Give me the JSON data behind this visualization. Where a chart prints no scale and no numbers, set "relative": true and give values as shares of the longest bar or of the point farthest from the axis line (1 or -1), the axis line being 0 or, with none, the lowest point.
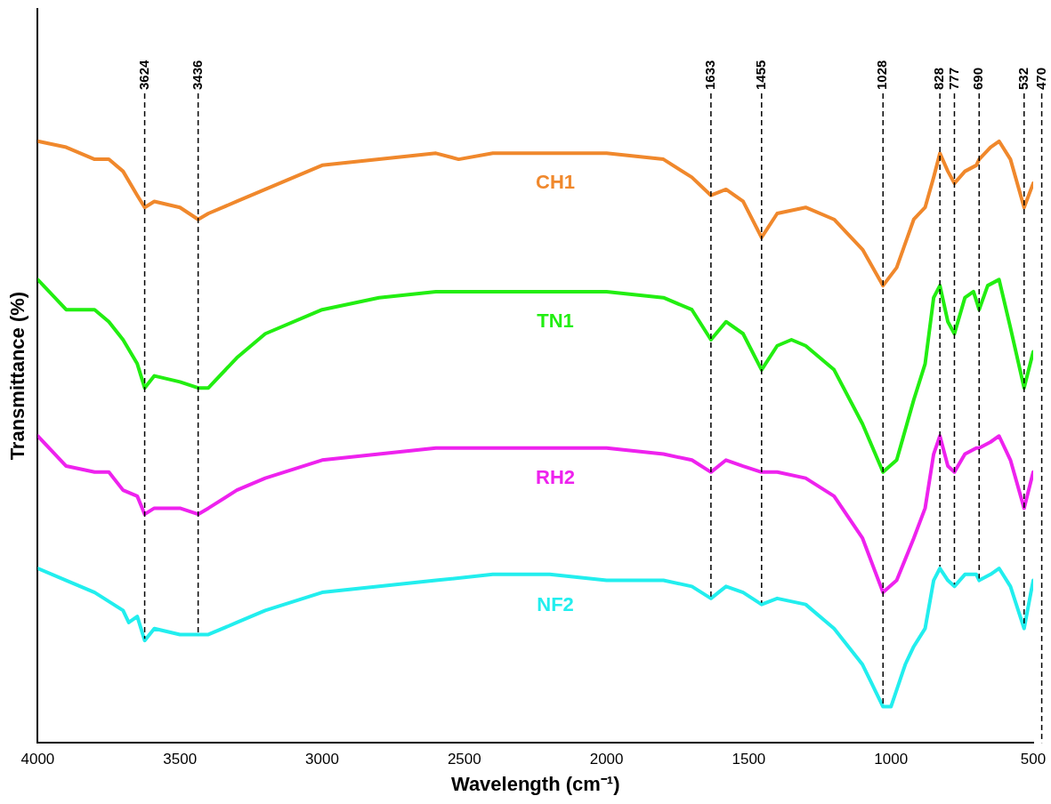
{
  "chart_data": {
    "type": "line",
    "relative": true,
    "xlabel": "Wavelength (cm⁻¹)",
    "ylabel": "Transmittance (%)",
    "xlim": [
      4000,
      500
    ],
    "xticks": [
      4000,
      3500,
      3000,
      2500,
      2000,
      1500,
      1000,
      500
    ],
    "grid": false,
    "legend": false,
    "marker": "none",
    "line_style": "solid",
    "series": [
      {
        "name": "CH1",
        "color": "#f0882c",
        "x": [
          4000,
          3900,
          3800,
          3750,
          3700,
          3650,
          3624,
          3590,
          3500,
          3436,
          3400,
          3300,
          3200,
          3000,
          2800,
          2600,
          2520,
          2400,
          2200,
          2000,
          1800,
          1700,
          1633,
          1580,
          1520,
          1455,
          1400,
          1300,
          1200,
          1100,
          1028,
          980,
          920,
          880,
          850,
          828,
          800,
          777,
          740,
          700,
          690,
          650,
          620,
          580,
          532,
          500
        ],
        "values": [
          1.0,
          0.99,
          0.97,
          0.97,
          0.95,
          0.91,
          0.89,
          0.9,
          0.89,
          0.87,
          0.88,
          0.9,
          0.92,
          0.96,
          0.97,
          0.98,
          0.97,
          0.98,
          0.98,
          0.98,
          0.97,
          0.94,
          0.91,
          0.92,
          0.9,
          0.84,
          0.88,
          0.89,
          0.87,
          0.82,
          0.76,
          0.79,
          0.87,
          0.89,
          0.94,
          0.98,
          0.95,
          0.93,
          0.95,
          0.96,
          0.97,
          0.99,
          1.0,
          0.97,
          0.89,
          0.93
        ]
      },
      {
        "name": "TN1",
        "color": "#22ee11",
        "x": [
          4000,
          3900,
          3800,
          3750,
          3700,
          3650,
          3624,
          3590,
          3500,
          3436,
          3400,
          3300,
          3200,
          3000,
          2800,
          2600,
          2400,
          2200,
          2000,
          1800,
          1700,
          1633,
          1580,
          1520,
          1455,
          1400,
          1350,
          1300,
          1200,
          1100,
          1028,
          980,
          920,
          880,
          850,
          828,
          800,
          777,
          740,
          710,
          690,
          660,
          620,
          580,
          532,
          500
        ],
        "values": [
          0.77,
          0.72,
          0.72,
          0.7,
          0.67,
          0.63,
          0.59,
          0.61,
          0.6,
          0.59,
          0.59,
          0.64,
          0.68,
          0.72,
          0.74,
          0.75,
          0.75,
          0.75,
          0.75,
          0.74,
          0.72,
          0.67,
          0.7,
          0.68,
          0.62,
          0.66,
          0.67,
          0.66,
          0.62,
          0.53,
          0.45,
          0.47,
          0.57,
          0.63,
          0.74,
          0.76,
          0.7,
          0.68,
          0.74,
          0.75,
          0.72,
          0.76,
          0.77,
          0.69,
          0.59,
          0.65
        ]
      },
      {
        "name": "RH2",
        "color": "#ee22ee",
        "x": [
          4000,
          3900,
          3800,
          3750,
          3700,
          3650,
          3624,
          3590,
          3500,
          3436,
          3400,
          3300,
          3200,
          3000,
          2800,
          2600,
          2400,
          2200,
          2000,
          1800,
          1700,
          1633,
          1580,
          1520,
          1455,
          1400,
          1300,
          1200,
          1100,
          1028,
          980,
          920,
          880,
          850,
          828,
          800,
          777,
          740,
          700,
          690,
          650,
          620,
          580,
          532,
          500
        ],
        "values": [
          0.51,
          0.46,
          0.45,
          0.45,
          0.42,
          0.41,
          0.38,
          0.39,
          0.39,
          0.38,
          0.39,
          0.42,
          0.44,
          0.47,
          0.48,
          0.49,
          0.49,
          0.49,
          0.49,
          0.48,
          0.47,
          0.45,
          0.47,
          0.46,
          0.45,
          0.45,
          0.44,
          0.41,
          0.34,
          0.25,
          0.27,
          0.34,
          0.39,
          0.48,
          0.51,
          0.46,
          0.45,
          0.48,
          0.49,
          0.49,
          0.5,
          0.51,
          0.47,
          0.39,
          0.45
        ]
      },
      {
        "name": "NF2",
        "color": "#22eeee",
        "x": [
          4000,
          3900,
          3800,
          3700,
          3680,
          3650,
          3624,
          3590,
          3500,
          3436,
          3400,
          3300,
          3200,
          3000,
          2800,
          2600,
          2400,
          2200,
          2000,
          1800,
          1700,
          1633,
          1580,
          1520,
          1455,
          1400,
          1300,
          1200,
          1100,
          1028,
          1000,
          950,
          920,
          880,
          850,
          828,
          800,
          777,
          740,
          700,
          690,
          650,
          620,
          580,
          532,
          500
        ],
        "values": [
          0.29,
          0.27,
          0.25,
          0.22,
          0.2,
          0.21,
          0.17,
          0.19,
          0.18,
          0.18,
          0.18,
          0.2,
          0.22,
          0.25,
          0.26,
          0.27,
          0.28,
          0.28,
          0.27,
          0.27,
          0.26,
          0.24,
          0.26,
          0.25,
          0.23,
          0.24,
          0.23,
          0.19,
          0.13,
          0.06,
          0.06,
          0.13,
          0.16,
          0.19,
          0.27,
          0.29,
          0.27,
          0.26,
          0.28,
          0.28,
          0.27,
          0.28,
          0.29,
          0.26,
          0.19,
          0.27
        ]
      }
    ],
    "ref_lines": [
      {
        "axis": "x",
        "value": 3624,
        "label": "3624",
        "line_style": "dashed"
      },
      {
        "axis": "x",
        "value": 3436,
        "label": "3436",
        "line_style": "dashed"
      },
      {
        "axis": "x",
        "value": 1633,
        "label": "1633",
        "line_style": "dashed"
      },
      {
        "axis": "x",
        "value": 1455,
        "label": "1455",
        "line_style": "dashed"
      },
      {
        "axis": "x",
        "value": 1028,
        "label": "1028",
        "line_style": "dashed"
      },
      {
        "axis": "x",
        "value": 828,
        "label": "828",
        "line_style": "dashed"
      },
      {
        "axis": "x",
        "value": 777,
        "label": "777",
        "line_style": "dashed"
      },
      {
        "axis": "x",
        "value": 690,
        "label": "690",
        "line_style": "dashed"
      },
      {
        "axis": "x",
        "value": 532,
        "label": "532",
        "line_style": "dashed"
      },
      {
        "axis": "x",
        "value": 470,
        "label": "470",
        "line_style": "dashed"
      }
    ]
  }
}
